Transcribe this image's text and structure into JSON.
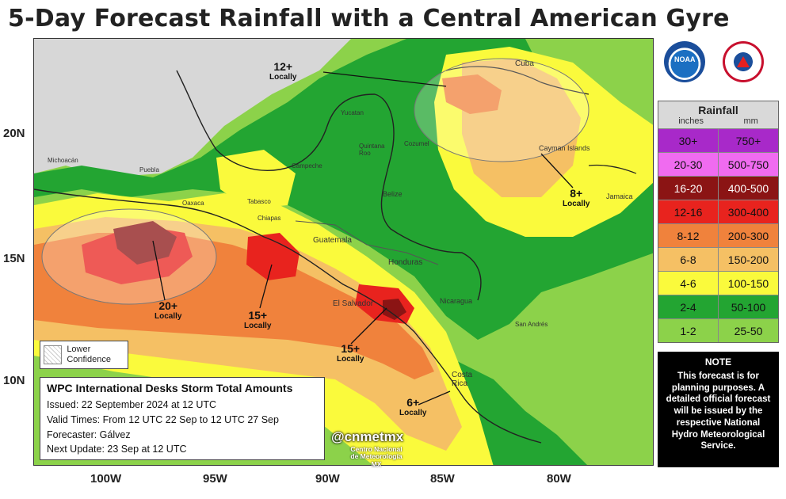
{
  "title": "5-Day Forecast Rainfall with a Central American Gyre",
  "latitude_labels": [
    "20N",
    "15N",
    "10N"
  ],
  "longitude_labels": [
    "100W",
    "95W",
    "90W",
    "85W",
    "80W"
  ],
  "logos": [
    "noaa-logo",
    "national-weather-service-logo"
  ],
  "legend": {
    "title": "Rainfall",
    "unit_inches": "inches",
    "unit_mm": "mm",
    "rows": [
      {
        "inches": "30+",
        "mm": "750+",
        "color": "#a829c9"
      },
      {
        "inches": "20-30",
        "mm": "500-750",
        "color": "#f06bf0"
      },
      {
        "inches": "16-20",
        "mm": "400-500",
        "color": "#8b1414"
      },
      {
        "inches": "12-16",
        "mm": "300-400",
        "color": "#e8231e"
      },
      {
        "inches": "8-12",
        "mm": "200-300",
        "color": "#f0823c"
      },
      {
        "inches": "6-8",
        "mm": "150-200",
        "color": "#f5c064"
      },
      {
        "inches": "4-6",
        "mm": "100-150",
        "color": "#fafa3c"
      },
      {
        "inches": "2-4",
        "mm": "50-100",
        "color": "#23a532"
      },
      {
        "inches": "1-2",
        "mm": "25-50",
        "color": "#8cd24a"
      }
    ]
  },
  "note": {
    "title": "NOTE",
    "text": "This forecast is for planning purposes. A detailed official forecast will be issued by the respective National Hydro Meteorological Service."
  },
  "confidence_label": "Lower Confidence",
  "info": {
    "title": "WPC International Desks Storm Total Amounts",
    "issued": "Issued:  22 September 2024 at 12 UTC",
    "valid": "Valid Times:  From 12 UTC 22 Sep  to  12 UTC 27 Sep",
    "forecaster": "Forecaster: Gálvez",
    "next_update": "Next Update: 23 Sep at 12 UTC"
  },
  "handle": "@cnmetmx",
  "handle_sub": "Centro Nacional de Meteorología MX",
  "annotations": [
    {
      "id": "yucatan",
      "value": "12+",
      "label": "Locally"
    },
    {
      "id": "cayman",
      "value": "8+",
      "label": "Locally"
    },
    {
      "id": "guerrero",
      "value": "20+",
      "label": "Locally"
    },
    {
      "id": "chiapas",
      "value": "15+",
      "label": "Locally"
    },
    {
      "id": "elsalvador",
      "value": "15+",
      "label": "Locally"
    },
    {
      "id": "costarica",
      "value": "6+",
      "label": "Locally"
    }
  ],
  "places": [
    "Cuba",
    "Cayman Islands",
    "Jamaica",
    "Guatemala",
    "Honduras",
    "El Salvador",
    "Nicaragua",
    "Costa Rica",
    "Belize",
    "Yucatan",
    "Campeche",
    "Tabasco",
    "Chiapas",
    "Oaxaca",
    "Puebla",
    "Michoacán",
    "Cozumel",
    "Quintana Roo",
    "San Andrés"
  ]
}
